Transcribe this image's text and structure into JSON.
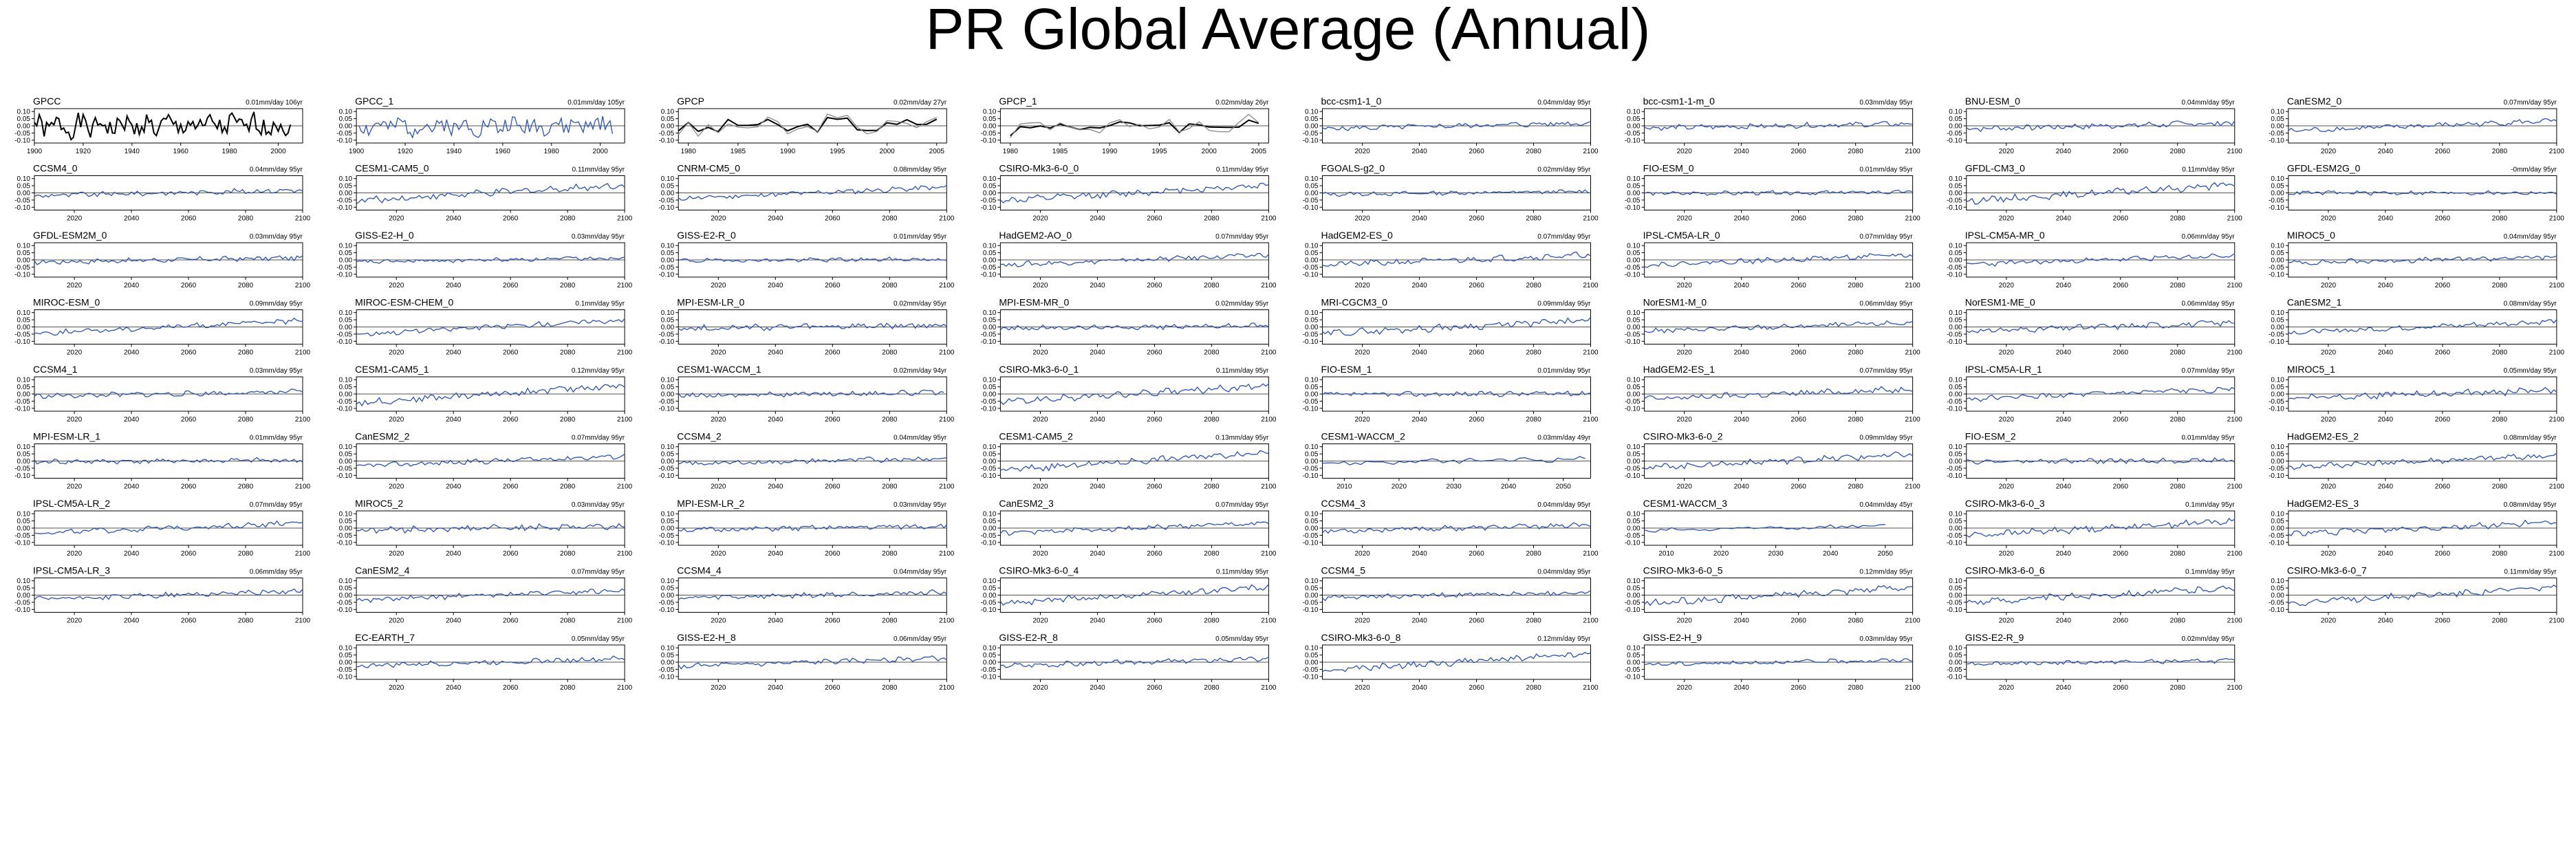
{
  "page": {
    "title": "PR Global Average (Annual)"
  },
  "style": {
    "obs_color": "#000000",
    "obs_secondary_color": "#888888",
    "model_color": "#2a52be",
    "zero_line_color": "#1a1a1a"
  },
  "y_axis": {
    "range": [
      -0.12,
      0.12
    ],
    "ticks": [
      "0.10",
      "0.05",
      "0.00",
      "-0.05",
      "-0.10"
    ],
    "tick_values": [
      0.1,
      0.05,
      0.0,
      -0.05,
      -0.1
    ]
  },
  "x_axes": {
    "gpcc": {
      "range": [
        1900,
        2010
      ],
      "ticks": [
        1900,
        1920,
        1940,
        1960,
        1980,
        2000
      ]
    },
    "gpcp": {
      "range": [
        1979,
        2006
      ],
      "ticks": [
        1980,
        1985,
        1990,
        1995,
        2000,
        2005
      ]
    },
    "future": {
      "range": [
        2006,
        2100
      ],
      "ticks": [
        2020,
        2040,
        2060,
        2080,
        2100
      ]
    },
    "short": {
      "range": [
        2006,
        2055
      ],
      "ticks": [
        2010,
        2020,
        2030,
        2040,
        2050
      ]
    }
  },
  "chart_data": [
    {
      "type": "line",
      "title": "GPCC",
      "trend": "0.01mm/day 106yr",
      "axis": "gpcc",
      "x": [
        1900,
        2005
      ],
      "obs": true,
      "slope": 0.01,
      "amp": 0.07,
      "seed": 1
    },
    {
      "type": "line",
      "title": "GPCC_1",
      "trend": "0.01mm/day 105yr",
      "axis": "gpcc",
      "x": [
        1901,
        2005
      ],
      "model": true,
      "slope": 0.01,
      "amp": 0.06,
      "seed": 2
    },
    {
      "type": "line",
      "title": "GPCP",
      "trend": "0.02mm/day 27yr",
      "axis": "gpcp",
      "x": [
        1979,
        2005
      ],
      "obs": true,
      "slope": 0.02,
      "amp": 0.05,
      "seed": 3
    },
    {
      "type": "line",
      "title": "GPCP_1",
      "trend": "0.02mm/day 26yr",
      "axis": "gpcp",
      "x": [
        1980,
        2005
      ],
      "obs": true,
      "slope": 0.02,
      "amp": 0.05,
      "seed": 4
    },
    {
      "type": "line",
      "title": "bcc-csm1-1_0",
      "trend": "0.04mm/day 95yr",
      "axis": "future",
      "x": [
        2006,
        2100
      ],
      "slope": 0.04,
      "amp": 0.015,
      "seed": 5
    },
    {
      "type": "line",
      "title": "bcc-csm1-1-m_0",
      "trend": "0.03mm/day 95yr",
      "axis": "future",
      "x": [
        2006,
        2100
      ],
      "slope": 0.03,
      "amp": 0.015,
      "seed": 6
    },
    {
      "type": "line",
      "title": "BNU-ESM_0",
      "trend": "0.04mm/day 95yr",
      "axis": "future",
      "x": [
        2006,
        2100
      ],
      "slope": 0.04,
      "amp": 0.018,
      "seed": 7
    },
    {
      "type": "line",
      "title": "CanESM2_0",
      "trend": "0.07mm/day 95yr",
      "axis": "future",
      "x": [
        2006,
        2100
      ],
      "slope": 0.07,
      "amp": 0.015,
      "seed": 8
    },
    {
      "type": "line",
      "title": "CCSM4_0",
      "trend": "0.04mm/day 95yr",
      "axis": "future",
      "x": [
        2006,
        2100
      ],
      "slope": 0.04,
      "amp": 0.015,
      "seed": 9
    },
    {
      "type": "line",
      "title": "CESM1-CAM5_0",
      "trend": "0.11mm/day 95yr",
      "axis": "future",
      "x": [
        2006,
        2100
      ],
      "slope": 0.11,
      "amp": 0.02,
      "seed": 10
    },
    {
      "type": "line",
      "title": "CNRM-CM5_0",
      "trend": "0.08mm/day 95yr",
      "axis": "future",
      "x": [
        2006,
        2100
      ],
      "slope": 0.08,
      "amp": 0.015,
      "seed": 11
    },
    {
      "type": "line",
      "title": "CSIRO-Mk3-6-0_0",
      "trend": "0.11mm/day 95yr",
      "axis": "future",
      "x": [
        2006,
        2100
      ],
      "slope": 0.11,
      "amp": 0.02,
      "seed": 12
    },
    {
      "type": "line",
      "title": "FGOALS-g2_0",
      "trend": "0.02mm/day 95yr",
      "axis": "future",
      "x": [
        2006,
        2100
      ],
      "slope": 0.02,
      "amp": 0.012,
      "seed": 13
    },
    {
      "type": "line",
      "title": "FIO-ESM_0",
      "trend": "0.01mm/day 95yr",
      "axis": "future",
      "x": [
        2006,
        2100
      ],
      "slope": 0.01,
      "amp": 0.012,
      "seed": 14
    },
    {
      "type": "line",
      "title": "GFDL-CM3_0",
      "trend": "0.11mm/day 95yr",
      "axis": "future",
      "x": [
        2006,
        2100
      ],
      "slope": 0.11,
      "amp": 0.02,
      "seed": 15
    },
    {
      "type": "line",
      "title": "GFDL-ESM2G_0",
      "trend": "-0mm/day 95yr",
      "axis": "future",
      "x": [
        2006,
        2100
      ],
      "slope": 0.0,
      "amp": 0.012,
      "seed": 16
    },
    {
      "type": "line",
      "title": "GFDL-ESM2M_0",
      "trend": "0.03mm/day 95yr",
      "axis": "future",
      "x": [
        2006,
        2100
      ],
      "slope": 0.03,
      "amp": 0.015,
      "seed": 17
    },
    {
      "type": "line",
      "title": "GISS-E2-H_0",
      "trend": "0.03mm/day 95yr",
      "axis": "future",
      "x": [
        2006,
        2100
      ],
      "slope": 0.03,
      "amp": 0.012,
      "seed": 18
    },
    {
      "type": "line",
      "title": "GISS-E2-R_0",
      "trend": "0.01mm/day 95yr",
      "axis": "future",
      "x": [
        2006,
        2100
      ],
      "slope": 0.01,
      "amp": 0.012,
      "seed": 19
    },
    {
      "type": "line",
      "title": "HadGEM2-AO_0",
      "trend": "0.07mm/day 95yr",
      "axis": "future",
      "x": [
        2006,
        2100
      ],
      "slope": 0.07,
      "amp": 0.015,
      "seed": 20
    },
    {
      "type": "line",
      "title": "HadGEM2-ES_0",
      "trend": "0.07mm/day 95yr",
      "axis": "future",
      "x": [
        2006,
        2100
      ],
      "slope": 0.07,
      "amp": 0.018,
      "seed": 21
    },
    {
      "type": "line",
      "title": "IPSL-CM5A-LR_0",
      "trend": "0.07mm/day 95yr",
      "axis": "future",
      "x": [
        2006,
        2100
      ],
      "slope": 0.07,
      "amp": 0.015,
      "seed": 22
    },
    {
      "type": "line",
      "title": "IPSL-CM5A-MR_0",
      "trend": "0.06mm/day 95yr",
      "axis": "future",
      "x": [
        2006,
        2100
      ],
      "slope": 0.06,
      "amp": 0.015,
      "seed": 23
    },
    {
      "type": "line",
      "title": "MIROC5_0",
      "trend": "0.04mm/day 95yr",
      "axis": "future",
      "x": [
        2006,
        2100
      ],
      "slope": 0.04,
      "amp": 0.015,
      "seed": 24
    },
    {
      "type": "line",
      "title": "MIROC-ESM_0",
      "trend": "0.09mm/day 95yr",
      "axis": "future",
      "x": [
        2006,
        2100
      ],
      "slope": 0.09,
      "amp": 0.015,
      "seed": 25
    },
    {
      "type": "line",
      "title": "MIROC-ESM-CHEM_0",
      "trend": "0.1mm/day 95yr",
      "axis": "future",
      "x": [
        2006,
        2100
      ],
      "slope": 0.1,
      "amp": 0.015,
      "seed": 26
    },
    {
      "type": "line",
      "title": "MPI-ESM-LR_0",
      "trend": "0.02mm/day 95yr",
      "axis": "future",
      "x": [
        2006,
        2100
      ],
      "slope": 0.02,
      "amp": 0.018,
      "seed": 27
    },
    {
      "type": "line",
      "title": "MPI-ESM-MR_0",
      "trend": "0.02mm/day 95yr",
      "axis": "future",
      "x": [
        2006,
        2100
      ],
      "slope": 0.02,
      "amp": 0.015,
      "seed": 28
    },
    {
      "type": "line",
      "title": "MRI-CGCM3_0",
      "trend": "0.09mm/day 95yr",
      "axis": "future",
      "x": [
        2006,
        2100
      ],
      "slope": 0.09,
      "amp": 0.02,
      "seed": 29
    },
    {
      "type": "line",
      "title": "NorESM1-M_0",
      "trend": "0.06mm/day 95yr",
      "axis": "future",
      "x": [
        2006,
        2100
      ],
      "slope": 0.06,
      "amp": 0.015,
      "seed": 30
    },
    {
      "type": "line",
      "title": "NorESM1-ME_0",
      "trend": "0.06mm/day 95yr",
      "axis": "future",
      "x": [
        2006,
        2100
      ],
      "slope": 0.06,
      "amp": 0.018,
      "seed": 31
    },
    {
      "type": "line",
      "title": "CanESM2_1",
      "trend": "0.08mm/day 95yr",
      "axis": "future",
      "x": [
        2006,
        2100
      ],
      "slope": 0.08,
      "amp": 0.015,
      "seed": 32
    },
    {
      "type": "line",
      "title": "CCSM4_1",
      "trend": "0.03mm/day 95yr",
      "axis": "future",
      "x": [
        2006,
        2100
      ],
      "slope": 0.03,
      "amp": 0.015,
      "seed": 33
    },
    {
      "type": "line",
      "title": "CESM1-CAM5_1",
      "trend": "0.12mm/day 95yr",
      "axis": "future",
      "x": [
        2006,
        2100
      ],
      "slope": 0.12,
      "amp": 0.02,
      "seed": 34
    },
    {
      "type": "line",
      "title": "CESM1-WACCM_1",
      "trend": "0.02mm/day 94yr",
      "axis": "future",
      "x": [
        2006,
        2099
      ],
      "slope": 0.02,
      "amp": 0.015,
      "seed": 35
    },
    {
      "type": "line",
      "title": "CSIRO-Mk3-6-0_1",
      "trend": "0.11mm/day 95yr",
      "axis": "future",
      "x": [
        2006,
        2100
      ],
      "slope": 0.11,
      "amp": 0.02,
      "seed": 36
    },
    {
      "type": "line",
      "title": "FIO-ESM_1",
      "trend": "0.01mm/day 95yr",
      "axis": "future",
      "x": [
        2006,
        2100
      ],
      "slope": 0.01,
      "amp": 0.015,
      "seed": 37
    },
    {
      "type": "line",
      "title": "HadGEM2-ES_1",
      "trend": "0.07mm/day 95yr",
      "axis": "future",
      "x": [
        2006,
        2100
      ],
      "slope": 0.07,
      "amp": 0.018,
      "seed": 38
    },
    {
      "type": "line",
      "title": "IPSL-CM5A-LR_1",
      "trend": "0.07mm/day 95yr",
      "axis": "future",
      "x": [
        2006,
        2100
      ],
      "slope": 0.07,
      "amp": 0.015,
      "seed": 39
    },
    {
      "type": "line",
      "title": "MIROC5_1",
      "trend": "0.05mm/day 95yr",
      "axis": "future",
      "x": [
        2006,
        2100
      ],
      "slope": 0.05,
      "amp": 0.02,
      "seed": 40
    },
    {
      "type": "line",
      "title": "MPI-ESM-LR_1",
      "trend": "0.01mm/day 95yr",
      "axis": "future",
      "x": [
        2006,
        2100
      ],
      "slope": 0.01,
      "amp": 0.015,
      "seed": 41
    },
    {
      "type": "line",
      "title": "CanESM2_2",
      "trend": "0.07mm/day 95yr",
      "axis": "future",
      "x": [
        2006,
        2100
      ],
      "slope": 0.07,
      "amp": 0.015,
      "seed": 42
    },
    {
      "type": "line",
      "title": "CCSM4_2",
      "trend": "0.04mm/day 95yr",
      "axis": "future",
      "x": [
        2006,
        2100
      ],
      "slope": 0.04,
      "amp": 0.015,
      "seed": 43
    },
    {
      "type": "line",
      "title": "CESM1-CAM5_2",
      "trend": "0.13mm/day 95yr",
      "axis": "future",
      "x": [
        2006,
        2100
      ],
      "slope": 0.13,
      "amp": 0.02,
      "seed": 44
    },
    {
      "type": "line",
      "title": "CESM1-WACCM_2",
      "trend": "0.03mm/day 49yr",
      "axis": "short",
      "x": [
        2006,
        2054
      ],
      "slope": 0.03,
      "amp": 0.015,
      "seed": 45
    },
    {
      "type": "line",
      "title": "CSIRO-Mk3-6-0_2",
      "trend": "0.09mm/day 95yr",
      "axis": "future",
      "x": [
        2006,
        2100
      ],
      "slope": 0.09,
      "amp": 0.02,
      "seed": 46
    },
    {
      "type": "line",
      "title": "FIO-ESM_2",
      "trend": "0.01mm/day 95yr",
      "axis": "future",
      "x": [
        2006,
        2100
      ],
      "slope": 0.01,
      "amp": 0.015,
      "seed": 47
    },
    {
      "type": "line",
      "title": "HadGEM2-ES_2",
      "trend": "0.08mm/day 95yr",
      "axis": "future",
      "x": [
        2006,
        2100
      ],
      "slope": 0.08,
      "amp": 0.018,
      "seed": 48
    },
    {
      "type": "line",
      "title": "IPSL-CM5A-LR_2",
      "trend": "0.07mm/day 95yr",
      "axis": "future",
      "x": [
        2006,
        2100
      ],
      "slope": 0.07,
      "amp": 0.015,
      "seed": 49
    },
    {
      "type": "line",
      "title": "MIROC5_2",
      "trend": "0.03mm/day 95yr",
      "axis": "future",
      "x": [
        2006,
        2100
      ],
      "slope": 0.03,
      "amp": 0.02,
      "seed": 50
    },
    {
      "type": "line",
      "title": "MPI-ESM-LR_2",
      "trend": "0.03mm/day 95yr",
      "axis": "future",
      "x": [
        2006,
        2100
      ],
      "slope": 0.03,
      "amp": 0.015,
      "seed": 51
    },
    {
      "type": "line",
      "title": "CanESM2_3",
      "trend": "0.07mm/day 95yr",
      "axis": "future",
      "x": [
        2006,
        2100
      ],
      "slope": 0.07,
      "amp": 0.015,
      "seed": 52
    },
    {
      "type": "line",
      "title": "CCSM4_3",
      "trend": "0.04mm/day 95yr",
      "axis": "future",
      "x": [
        2006,
        2100
      ],
      "slope": 0.04,
      "amp": 0.015,
      "seed": 53
    },
    {
      "type": "line",
      "title": "CESM1-WACCM_3",
      "trend": "0.04mm/day 45yr",
      "axis": "short",
      "x": [
        2006,
        2050
      ],
      "slope": 0.04,
      "amp": 0.015,
      "seed": 54
    },
    {
      "type": "line",
      "title": "CSIRO-Mk3-6-0_3",
      "trend": "0.1mm/day 95yr",
      "axis": "future",
      "x": [
        2006,
        2100
      ],
      "slope": 0.1,
      "amp": 0.02,
      "seed": 55
    },
    {
      "type": "line",
      "title": "HadGEM2-ES_3",
      "trend": "0.08mm/day 95yr",
      "axis": "future",
      "x": [
        2006,
        2100
      ],
      "slope": 0.08,
      "amp": 0.018,
      "seed": 56
    },
    {
      "type": "line",
      "title": "IPSL-CM5A-LR_3",
      "trend": "0.06mm/day 95yr",
      "axis": "future",
      "x": [
        2006,
        2100
      ],
      "slope": 0.06,
      "amp": 0.015,
      "seed": 57
    },
    {
      "type": "line",
      "title": "CanESM2_4",
      "trend": "0.07mm/day 95yr",
      "axis": "future",
      "x": [
        2006,
        2100
      ],
      "slope": 0.07,
      "amp": 0.015,
      "seed": 58
    },
    {
      "type": "line",
      "title": "CCSM4_4",
      "trend": "0.04mm/day 95yr",
      "axis": "future",
      "x": [
        2006,
        2100
      ],
      "slope": 0.04,
      "amp": 0.015,
      "seed": 59
    },
    {
      "type": "line",
      "title": "CSIRO-Mk3-6-0_4",
      "trend": "0.11mm/day 95yr",
      "axis": "future",
      "x": [
        2006,
        2100
      ],
      "slope": 0.11,
      "amp": 0.02,
      "seed": 60
    },
    {
      "type": "line",
      "title": "CCSM4_5",
      "trend": "0.04mm/day 95yr",
      "axis": "future",
      "x": [
        2006,
        2100
      ],
      "slope": 0.04,
      "amp": 0.015,
      "seed": 61
    },
    {
      "type": "line",
      "title": "CSIRO-Mk3-6-0_5",
      "trend": "0.12mm/day 95yr",
      "axis": "future",
      "x": [
        2006,
        2100
      ],
      "slope": 0.12,
      "amp": 0.02,
      "seed": 62
    },
    {
      "type": "line",
      "title": "CSIRO-Mk3-6-0_6",
      "trend": "0.1mm/day 95yr",
      "axis": "future",
      "x": [
        2006,
        2100
      ],
      "slope": 0.1,
      "amp": 0.02,
      "seed": 63
    },
    {
      "type": "line",
      "title": "CSIRO-Mk3-6-0_7",
      "trend": "0.11mm/day 95yr",
      "axis": "future",
      "x": [
        2006,
        2100
      ],
      "slope": 0.11,
      "amp": 0.02,
      "seed": 64
    },
    null,
    {
      "type": "line",
      "title": "EC-EARTH_7",
      "trend": "0.05mm/day 95yr",
      "axis": "future",
      "x": [
        2006,
        2100
      ],
      "slope": 0.05,
      "amp": 0.015,
      "seed": 65
    },
    {
      "type": "line",
      "title": "GISS-E2-H_8",
      "trend": "0.06mm/day 95yr",
      "axis": "future",
      "x": [
        2006,
        2100
      ],
      "slope": 0.06,
      "amp": 0.015,
      "seed": 66
    },
    {
      "type": "line",
      "title": "GISS-E2-R_8",
      "trend": "0.05mm/day 95yr",
      "axis": "future",
      "x": [
        2006,
        2100
      ],
      "slope": 0.05,
      "amp": 0.015,
      "seed": 67
    },
    {
      "type": "line",
      "title": "CSIRO-Mk3-6-0_8",
      "trend": "0.12mm/day 95yr",
      "axis": "future",
      "x": [
        2006,
        2100
      ],
      "slope": 0.12,
      "amp": 0.02,
      "seed": 68
    },
    {
      "type": "line",
      "title": "GISS-E2-H_9",
      "trend": "0.03mm/day 95yr",
      "axis": "future",
      "x": [
        2006,
        2100
      ],
      "slope": 0.03,
      "amp": 0.012,
      "seed": 69
    },
    {
      "type": "line",
      "title": "GISS-E2-R_9",
      "trend": "0.02mm/day 95yr",
      "axis": "future",
      "x": [
        2006,
        2100
      ],
      "slope": 0.02,
      "amp": 0.012,
      "seed": 70
    }
  ]
}
